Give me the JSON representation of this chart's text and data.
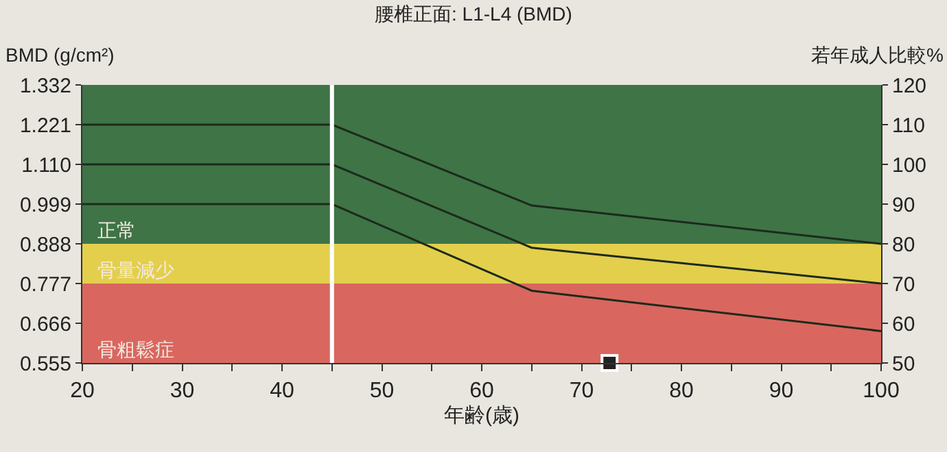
{
  "chart_data": {
    "type": "line",
    "title": "腰椎正面: L1-L4 (BMD)",
    "xlabel": "年齢(歳)",
    "ylabel": "BMD (g/cm²)",
    "y2label": "若年成人比較%",
    "x": [
      20,
      45,
      65,
      100
    ],
    "series": [
      {
        "color": "#1c2a1c",
        "values": [
          1.221,
          1.221,
          0.995,
          0.888
        ]
      },
      {
        "color": "#1c2a1c",
        "values": [
          1.11,
          1.11,
          0.877,
          0.777
        ]
      },
      {
        "color": "#1c2a1c",
        "values": [
          0.999,
          0.999,
          0.757,
          0.644
        ]
      },
      {
        "type": "scatter",
        "marker": "square",
        "color": "#222222",
        "x": [
          72.8
        ],
        "values": [
          0.555
        ]
      }
    ],
    "xlim": [
      20,
      100
    ],
    "xticks": [
      20,
      {
        "value": 25,
        "label": null
      },
      30,
      {
        "value": 35,
        "label": null
      },
      40,
      {
        "value": 45,
        "label": null
      },
      50,
      {
        "value": 55,
        "label": null
      },
      60,
      {
        "value": 65,
        "label": null
      },
      70,
      {
        "value": 75,
        "label": null
      },
      80,
      {
        "value": 85,
        "label": null
      },
      90,
      {
        "value": 95,
        "label": null
      },
      100
    ],
    "ylim": [
      0.555,
      1.332
    ],
    "yticks": [
      {
        "value": 0.555,
        "label": "0.555"
      },
      0.666,
      0.777,
      0.888,
      0.999,
      {
        "value": 1.11,
        "label": "1.110"
      },
      1.221,
      1.332
    ],
    "y2lim": [
      50,
      120
    ],
    "y2ticks": [
      50,
      60,
      70,
      80,
      90,
      100,
      110,
      120
    ],
    "bands": [
      {
        "axis": "y",
        "from": 0.888,
        "to": 1.332,
        "label": "正常",
        "color": "#3f7446"
      },
      {
        "axis": "y",
        "from": 0.777,
        "to": 0.888,
        "label": "骨量減少",
        "color": "#e3cf4c"
      },
      {
        "axis": "y",
        "from": 0.555,
        "to": 0.777,
        "label": "骨粗鬆症",
        "color": "#d9675f"
      }
    ],
    "ref_lines": [
      {
        "axis": "x",
        "value": 45,
        "color": "#ffffff"
      }
    ],
    "grid": false,
    "line_style": "solid",
    "marker": "none"
  }
}
